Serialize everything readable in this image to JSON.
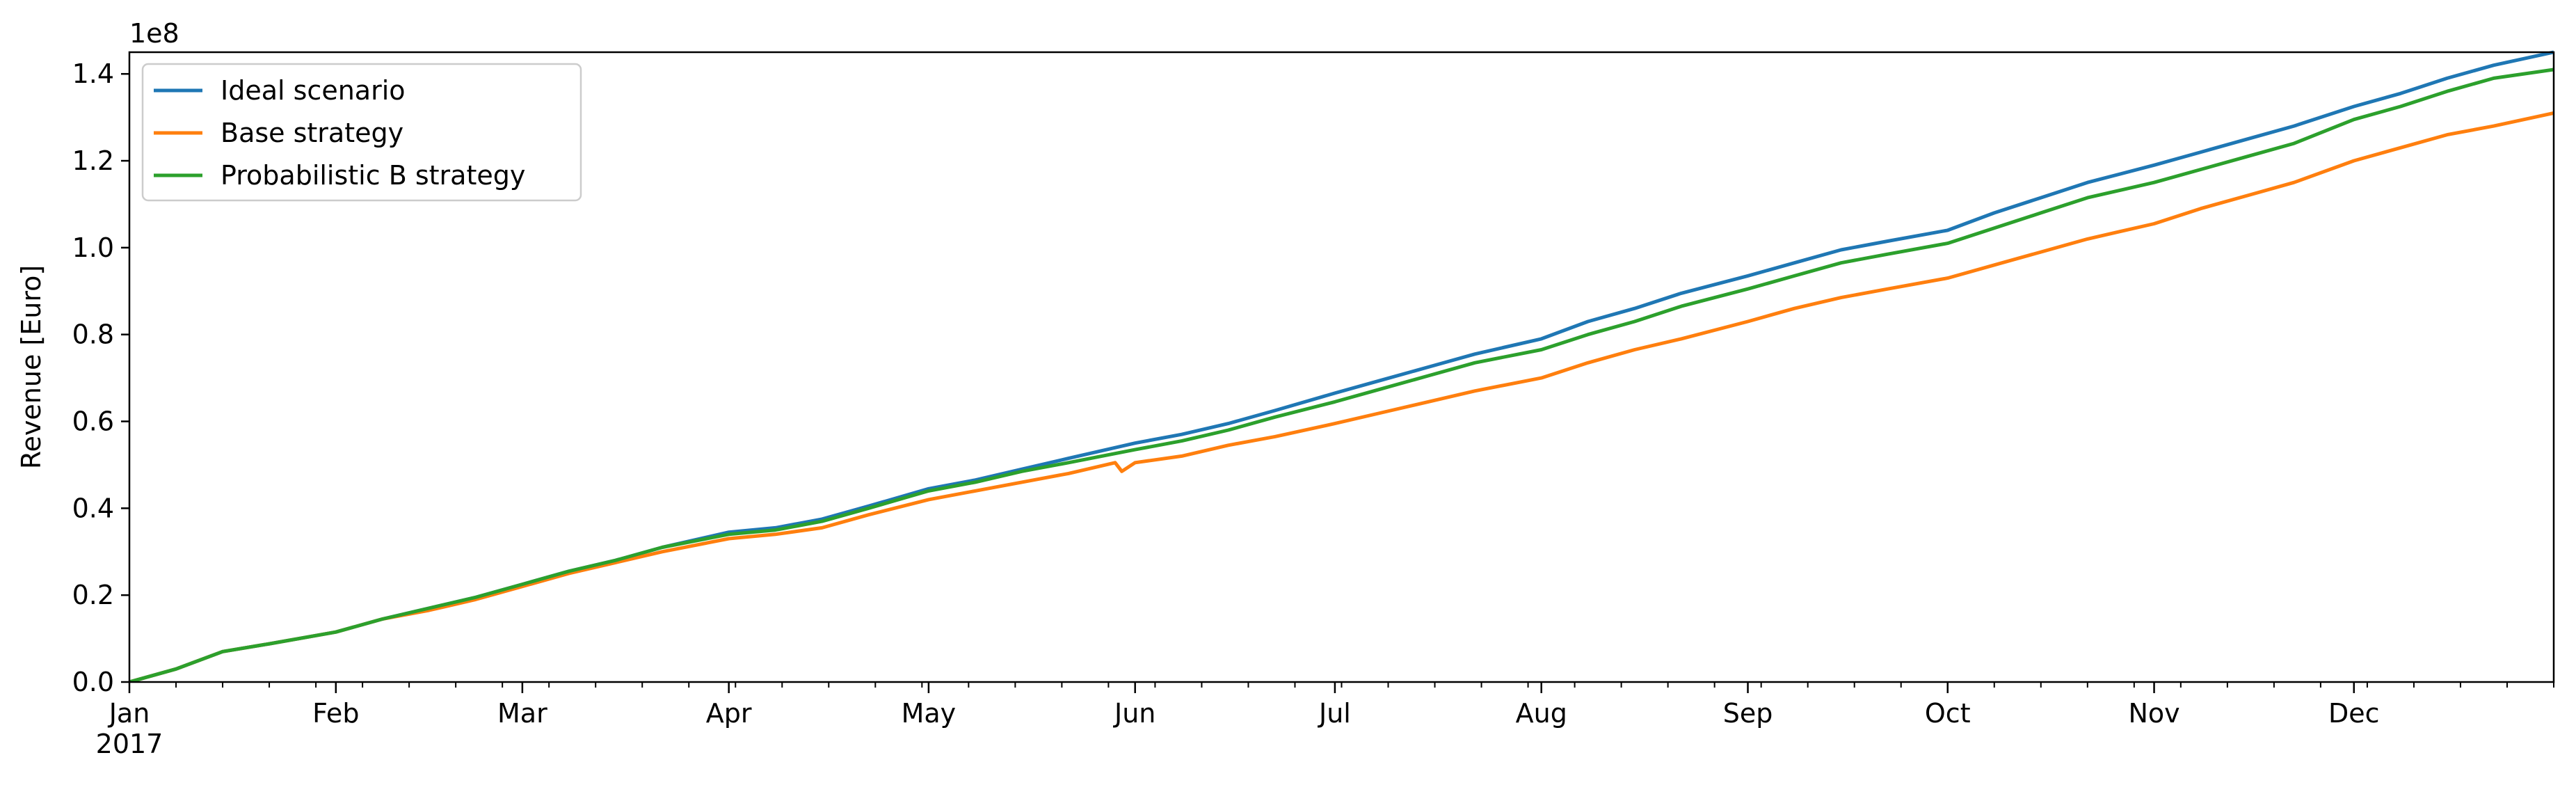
{
  "chart_data": {
    "type": "line",
    "title": "",
    "xlabel": "",
    "ylabel": "Revenue [Euro]",
    "y_offset_label": "1e8",
    "x_year_label": "2017",
    "x_range": [
      "2017-01-01",
      "2017-12-31"
    ],
    "ylim": [
      0,
      1.45
    ],
    "y_ticks": [
      0.0,
      0.2,
      0.4,
      0.6,
      0.8,
      1.0,
      1.2,
      1.4
    ],
    "y_tick_labels": [
      "0.0",
      "0.2",
      "0.4",
      "0.6",
      "0.8",
      "1.0",
      "1.2",
      "1.4"
    ],
    "x_ticks": [
      "2017-01-01",
      "2017-02-01",
      "2017-03-01",
      "2017-04-01",
      "2017-05-01",
      "2017-06-01",
      "2017-07-01",
      "2017-08-01",
      "2017-09-01",
      "2017-10-01",
      "2017-11-01",
      "2017-12-01"
    ],
    "x_tick_labels": [
      "Jan",
      "Feb",
      "Mar",
      "Apr",
      "May",
      "Jun",
      "Jul",
      "Aug",
      "Sep",
      "Oct",
      "Nov",
      "Dec"
    ],
    "grid": false,
    "legend_position": "top-left",
    "series": [
      {
        "name": "Ideal scenario",
        "color": "#1f77b4",
        "x": [
          "2017-01-01",
          "2017-01-08",
          "2017-01-15",
          "2017-01-22",
          "2017-02-01",
          "2017-02-08",
          "2017-02-15",
          "2017-02-22",
          "2017-03-01",
          "2017-03-08",
          "2017-03-15",
          "2017-03-22",
          "2017-04-01",
          "2017-04-08",
          "2017-04-15",
          "2017-04-22",
          "2017-05-01",
          "2017-05-08",
          "2017-05-15",
          "2017-05-22",
          "2017-06-01",
          "2017-06-08",
          "2017-06-15",
          "2017-06-22",
          "2017-07-01",
          "2017-07-08",
          "2017-07-15",
          "2017-07-22",
          "2017-08-01",
          "2017-08-08",
          "2017-08-15",
          "2017-08-22",
          "2017-09-01",
          "2017-09-08",
          "2017-09-15",
          "2017-09-22",
          "2017-10-01",
          "2017-10-08",
          "2017-10-15",
          "2017-10-22",
          "2017-11-01",
          "2017-11-08",
          "2017-11-15",
          "2017-11-22",
          "2017-12-01",
          "2017-12-08",
          "2017-12-15",
          "2017-12-22",
          "2017-12-31"
        ],
        "values": [
          0.0,
          0.03,
          0.07,
          0.088,
          0.115,
          0.145,
          0.17,
          0.195,
          0.225,
          0.255,
          0.28,
          0.31,
          0.345,
          0.355,
          0.375,
          0.405,
          0.445,
          0.465,
          0.49,
          0.515,
          0.55,
          0.57,
          0.595,
          0.625,
          0.665,
          0.695,
          0.725,
          0.755,
          0.79,
          0.83,
          0.86,
          0.895,
          0.935,
          0.965,
          0.995,
          1.015,
          1.04,
          1.08,
          1.115,
          1.15,
          1.19,
          1.22,
          1.25,
          1.28,
          1.325,
          1.355,
          1.39,
          1.42,
          1.45
        ]
      },
      {
        "name": "Base strategy",
        "color": "#ff7f0e",
        "x": [
          "2017-01-01",
          "2017-01-08",
          "2017-01-15",
          "2017-01-22",
          "2017-02-01",
          "2017-02-08",
          "2017-02-15",
          "2017-02-22",
          "2017-03-01",
          "2017-03-08",
          "2017-03-15",
          "2017-03-22",
          "2017-04-01",
          "2017-04-08",
          "2017-04-15",
          "2017-04-22",
          "2017-05-01",
          "2017-05-08",
          "2017-05-15",
          "2017-05-22",
          "2017-05-29",
          "2017-05-30",
          "2017-06-01",
          "2017-06-08",
          "2017-06-15",
          "2017-06-22",
          "2017-07-01",
          "2017-07-08",
          "2017-07-15",
          "2017-07-22",
          "2017-08-01",
          "2017-08-08",
          "2017-08-15",
          "2017-08-22",
          "2017-09-01",
          "2017-09-08",
          "2017-09-15",
          "2017-09-22",
          "2017-10-01",
          "2017-10-08",
          "2017-10-15",
          "2017-10-22",
          "2017-11-01",
          "2017-11-08",
          "2017-11-15",
          "2017-11-22",
          "2017-12-01",
          "2017-12-08",
          "2017-12-15",
          "2017-12-22",
          "2017-12-31"
        ],
        "values": [
          0.0,
          0.03,
          0.07,
          0.088,
          0.115,
          0.145,
          0.165,
          0.19,
          0.22,
          0.25,
          0.275,
          0.3,
          0.33,
          0.34,
          0.355,
          0.385,
          0.42,
          0.44,
          0.46,
          0.48,
          0.505,
          0.485,
          0.505,
          0.52,
          0.545,
          0.565,
          0.595,
          0.62,
          0.645,
          0.67,
          0.7,
          0.735,
          0.765,
          0.79,
          0.83,
          0.86,
          0.885,
          0.905,
          0.93,
          0.96,
          0.99,
          1.02,
          1.055,
          1.09,
          1.12,
          1.15,
          1.2,
          1.23,
          1.26,
          1.28,
          1.31
        ]
      },
      {
        "name": "Probabilistic B strategy",
        "color": "#2ca02c",
        "x": [
          "2017-01-01",
          "2017-01-08",
          "2017-01-15",
          "2017-01-22",
          "2017-02-01",
          "2017-02-08",
          "2017-02-15",
          "2017-02-22",
          "2017-03-01",
          "2017-03-08",
          "2017-03-15",
          "2017-03-22",
          "2017-04-01",
          "2017-04-08",
          "2017-04-15",
          "2017-04-22",
          "2017-05-01",
          "2017-05-08",
          "2017-05-15",
          "2017-05-22",
          "2017-06-01",
          "2017-06-08",
          "2017-06-15",
          "2017-06-22",
          "2017-07-01",
          "2017-07-08",
          "2017-07-15",
          "2017-07-22",
          "2017-08-01",
          "2017-08-08",
          "2017-08-15",
          "2017-08-22",
          "2017-09-01",
          "2017-09-08",
          "2017-09-15",
          "2017-09-22",
          "2017-10-01",
          "2017-10-08",
          "2017-10-15",
          "2017-10-22",
          "2017-11-01",
          "2017-11-08",
          "2017-11-15",
          "2017-11-22",
          "2017-12-01",
          "2017-12-08",
          "2017-12-15",
          "2017-12-22",
          "2017-12-31"
        ],
        "values": [
          0.0,
          0.03,
          0.07,
          0.088,
          0.115,
          0.145,
          0.17,
          0.195,
          0.225,
          0.255,
          0.28,
          0.31,
          0.34,
          0.35,
          0.37,
          0.4,
          0.44,
          0.46,
          0.485,
          0.505,
          0.535,
          0.555,
          0.58,
          0.61,
          0.645,
          0.675,
          0.705,
          0.735,
          0.765,
          0.8,
          0.83,
          0.865,
          0.905,
          0.935,
          0.965,
          0.985,
          1.01,
          1.045,
          1.08,
          1.115,
          1.15,
          1.18,
          1.21,
          1.24,
          1.295,
          1.325,
          1.36,
          1.39,
          1.41
        ]
      }
    ]
  }
}
